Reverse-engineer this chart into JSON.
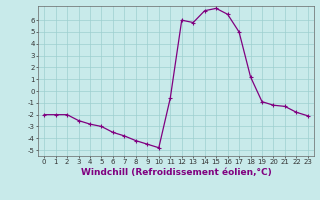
{
  "x": [
    0,
    1,
    2,
    3,
    4,
    5,
    6,
    7,
    8,
    9,
    10,
    11,
    12,
    13,
    14,
    15,
    16,
    17,
    18,
    19,
    20,
    21,
    22,
    23
  ],
  "y": [
    -2.0,
    -2.0,
    -2.0,
    -2.5,
    -2.8,
    -3.0,
    -3.5,
    -3.8,
    -4.2,
    -4.5,
    -4.8,
    -0.6,
    6.0,
    5.8,
    6.8,
    7.0,
    6.5,
    5.0,
    1.2,
    -0.9,
    -1.2,
    -1.3,
    -1.8,
    -2.1
  ],
  "line_color": "#800080",
  "marker": "+",
  "marker_size": 3,
  "marker_lw": 0.8,
  "line_width": 0.9,
  "bg_color": "#c8eaea",
  "grid_color": "#9dcfcf",
  "xlabel": "Windchill (Refroidissement éolien,°C)",
  "xlabel_fontsize": 6.5,
  "tick_fontsize": 5.0,
  "yticks": [
    -5,
    -4,
    -3,
    -2,
    -1,
    0,
    1,
    2,
    3,
    4,
    5,
    6
  ],
  "xticks": [
    0,
    1,
    2,
    3,
    4,
    5,
    6,
    7,
    8,
    9,
    10,
    11,
    12,
    13,
    14,
    15,
    16,
    17,
    18,
    19,
    20,
    21,
    22,
    23
  ],
  "ylim": [
    -5.5,
    7.2
  ],
  "xlim": [
    -0.5,
    23.5
  ]
}
